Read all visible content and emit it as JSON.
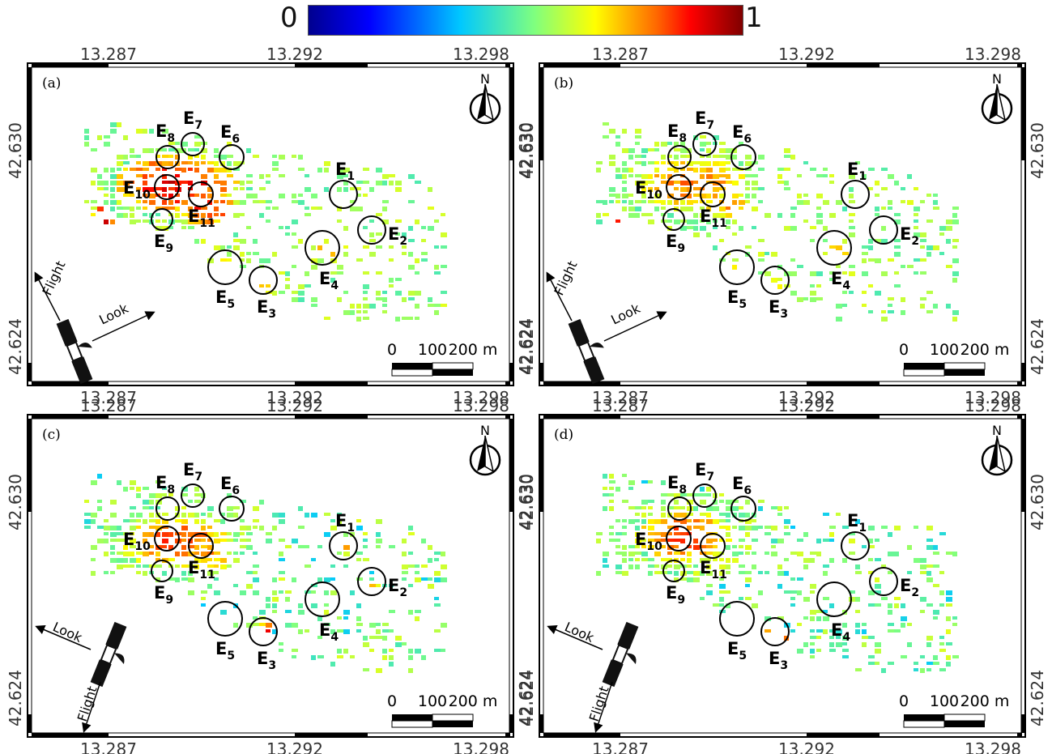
{
  "colorbar": {
    "min_label": "0",
    "max_label": "1",
    "colors": [
      "#00008f",
      "#0000ff",
      "#00ffff",
      "#ffff00",
      "#ff0000",
      "#800000"
    ]
  },
  "lon_ticks": [
    "13.287",
    "13.292",
    "13.298"
  ],
  "lat_ticks": [
    "42.630",
    "42.624"
  ],
  "north_label": "N",
  "scalebar": {
    "labels": [
      "0",
      "100",
      "200 m"
    ]
  },
  "flight_label": "Flight",
  "look_label": "Look",
  "events": [
    {
      "name": "E",
      "sub": "1"
    },
    {
      "name": "E",
      "sub": "2"
    },
    {
      "name": "E",
      "sub": "3"
    },
    {
      "name": "E",
      "sub": "4"
    },
    {
      "name": "E",
      "sub": "5"
    },
    {
      "name": "E",
      "sub": "6"
    },
    {
      "name": "E",
      "sub": "7"
    },
    {
      "name": "E",
      "sub": "8"
    },
    {
      "name": "E",
      "sub": "9"
    },
    {
      "name": "E",
      "sub": "10"
    },
    {
      "name": "E",
      "sub": "11"
    }
  ],
  "panels": [
    {
      "label": "(a)",
      "geometry": "ascending"
    },
    {
      "label": "(b)",
      "geometry": "ascending"
    },
    {
      "label": "(c)",
      "geometry": "descending"
    },
    {
      "label": "(d)",
      "geometry": "descending"
    }
  ]
}
